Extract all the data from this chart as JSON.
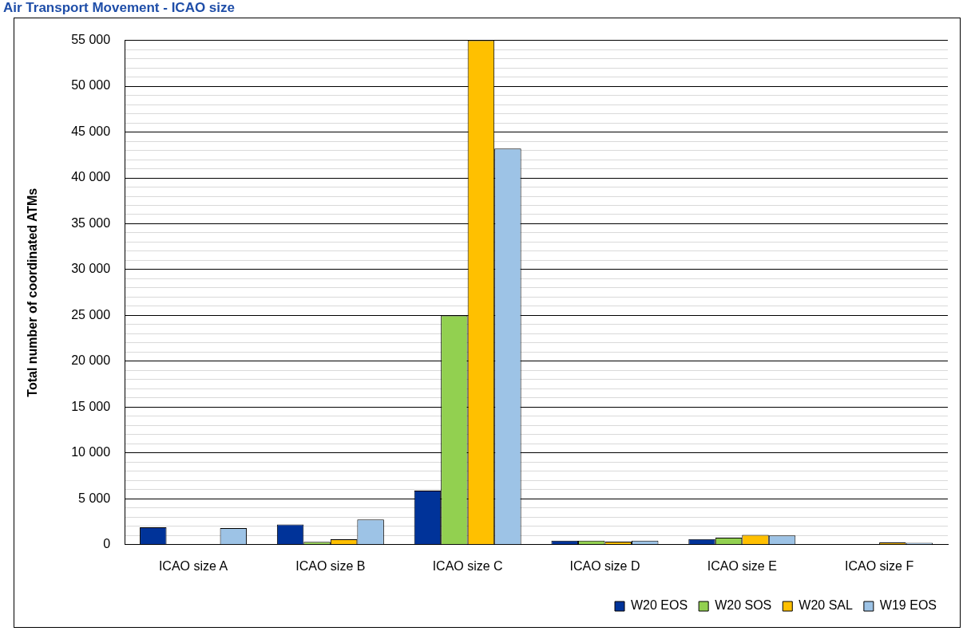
{
  "chart_data": {
    "type": "bar",
    "title": "Air Transport Movement - ICAO size",
    "ylabel": "Total number of coordinated ATMs",
    "categories": [
      "ICAO size A",
      "ICAO size B",
      "ICAO size C",
      "ICAO size D",
      "ICAO size E",
      "ICAO size F"
    ],
    "series": [
      {
        "name": "W20 EOS",
        "color": "#003399",
        "values": [
          1900,
          2200,
          5900,
          430,
          610,
          0
        ]
      },
      {
        "name": "W20 SOS",
        "color": "#92d050",
        "values": [
          0,
          300,
          25000,
          430,
          770,
          0
        ]
      },
      {
        "name": "W20 SAL",
        "color": "#ffc000",
        "values": [
          0,
          600,
          55000,
          340,
          1080,
          250
        ]
      },
      {
        "name": "W19 EOS",
        "color": "#9dc3e6",
        "values": [
          1800,
          2750,
          43200,
          430,
          1010,
          210
        ]
      }
    ],
    "ylim": [
      0,
      55000
    ],
    "yticks": [
      {
        "value": 0,
        "label": "0"
      },
      {
        "value": 1000,
        "label": null
      },
      {
        "value": 2000,
        "label": null
      },
      {
        "value": 3000,
        "label": null
      },
      {
        "value": 4000,
        "label": null
      },
      {
        "value": 5000,
        "label": "5 000"
      },
      {
        "value": 6000,
        "label": null
      },
      {
        "value": 7000,
        "label": null
      },
      {
        "value": 8000,
        "label": null
      },
      {
        "value": 9000,
        "label": null
      },
      {
        "value": 10000,
        "label": "10 000"
      },
      {
        "value": 11000,
        "label": null
      },
      {
        "value": 12000,
        "label": null
      },
      {
        "value": 13000,
        "label": null
      },
      {
        "value": 14000,
        "label": null
      },
      {
        "value": 15000,
        "label": "15 000"
      },
      {
        "value": 16000,
        "label": null
      },
      {
        "value": 17000,
        "label": null
      },
      {
        "value": 18000,
        "label": null
      },
      {
        "value": 19000,
        "label": null
      },
      {
        "value": 20000,
        "label": "20 000"
      },
      {
        "value": 21000,
        "label": null
      },
      {
        "value": 22000,
        "label": null
      },
      {
        "value": 23000,
        "label": null
      },
      {
        "value": 24000,
        "label": null
      },
      {
        "value": 25000,
        "label": "25 000"
      },
      {
        "value": 26000,
        "label": null
      },
      {
        "value": 27000,
        "label": null
      },
      {
        "value": 28000,
        "label": null
      },
      {
        "value": 29000,
        "label": null
      },
      {
        "value": 30000,
        "label": "30 000"
      },
      {
        "value": 31000,
        "label": null
      },
      {
        "value": 32000,
        "label": null
      },
      {
        "value": 33000,
        "label": null
      },
      {
        "value": 34000,
        "label": null
      },
      {
        "value": 35000,
        "label": "35 000"
      },
      {
        "value": 36000,
        "label": null
      },
      {
        "value": 37000,
        "label": null
      },
      {
        "value": 38000,
        "label": null
      },
      {
        "value": 39000,
        "label": null
      },
      {
        "value": 40000,
        "label": "40 000"
      },
      {
        "value": 41000,
        "label": null
      },
      {
        "value": 42000,
        "label": null
      },
      {
        "value": 43000,
        "label": null
      },
      {
        "value": 44000,
        "label": null
      },
      {
        "value": 45000,
        "label": "45 000"
      },
      {
        "value": 46000,
        "label": null
      },
      {
        "value": 47000,
        "label": null
      },
      {
        "value": 48000,
        "label": null
      },
      {
        "value": 49000,
        "label": null
      },
      {
        "value": 50000,
        "label": "50 000"
      },
      {
        "value": 51000,
        "label": null
      },
      {
        "value": 52000,
        "label": null
      },
      {
        "value": 53000,
        "label": null
      },
      {
        "value": 54000,
        "label": null
      },
      {
        "value": 55000,
        "label": "55 000"
      }
    ],
    "grid": "y",
    "legend": "bottom right"
  }
}
